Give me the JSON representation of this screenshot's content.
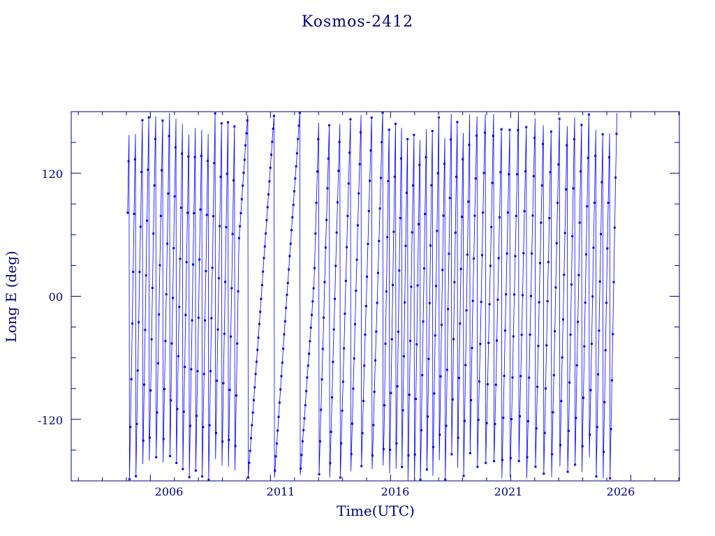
{
  "colors": {
    "axis": "#000080",
    "text": "#000080",
    "data": "#0000ff",
    "background": "#ffffff"
  },
  "chart_data": {
    "type": "line",
    "title": "Kosmos-2412",
    "xlabel": "Time(UTC)",
    "ylabel": "Long E (deg)",
    "x_ticks": [
      "2006",
      "2011",
      "2016",
      "2021",
      "2026"
    ],
    "y_ticks": [
      "120",
      "00",
      "-120"
    ],
    "xlim": [
      "2002-09-15",
      "2028-01-10"
    ],
    "ylim": [
      -180,
      180
    ],
    "grid": false,
    "legend": "none",
    "data_extent": {
      "start": "2005-01-20",
      "end": "2025-06-10"
    },
    "sample_interval_days": 7,
    "wrap_range": [
      -180,
      180
    ],
    "segments": [
      {
        "start": "2005-01-20",
        "end": "2009-09-15",
        "drift_deg_per_day": 3.6
      },
      {
        "start": "2009-09-15",
        "end": "2012-11-01",
        "drift_deg_per_day": 0.9
      },
      {
        "start": "2012-11-01",
        "end": "2015-10-01",
        "drift_deg_per_day": 2.2
      },
      {
        "start": "2015-10-01",
        "end": "2019-06-01",
        "drift_deg_per_day": 3.8
      },
      {
        "start": "2019-06-01",
        "end": "2023-06-01",
        "drift_deg_per_day": 2.9
      },
      {
        "start": "2023-06-01",
        "end": "2025-06-10",
        "drift_deg_per_day": 3.4
      }
    ]
  }
}
